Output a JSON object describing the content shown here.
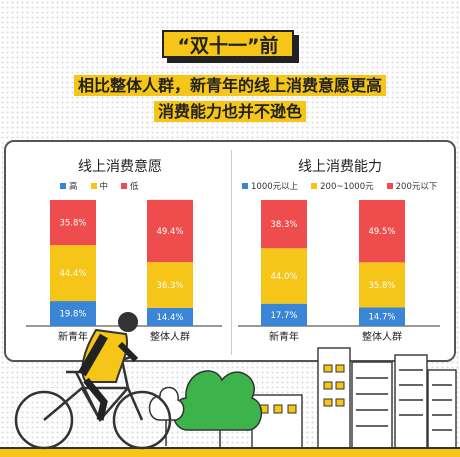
{
  "header": {
    "tag": "“双十一”前",
    "line1": "相比整体人群，新青年的线上消费意愿更高",
    "line2": "消费能力也并不逊色"
  },
  "colors": {
    "blue": "#3a86d6",
    "yellow": "#f5c518",
    "red": "#ef4d4d"
  },
  "chart_data": [
    {
      "type": "bar",
      "stacked": true,
      "title": "线上消费意愿",
      "categories": [
        "新青年",
        "整体人群"
      ],
      "series": [
        {
          "name": "高",
          "color": "#3a86d6",
          "values": [
            19.8,
            14.4
          ],
          "labels": [
            "19.8%",
            "14.4%"
          ]
        },
        {
          "name": "中",
          "color": "#f5c518",
          "values": [
            44.4,
            36.3
          ],
          "labels": [
            "44.4%",
            "36.3%"
          ]
        },
        {
          "name": "低",
          "color": "#ef4d4d",
          "values": [
            35.8,
            49.4
          ],
          "labels": [
            "35.8%",
            "49.4%"
          ]
        }
      ],
      "legend": "top"
    },
    {
      "type": "bar",
      "stacked": true,
      "title": "线上消费能力",
      "categories": [
        "新青年",
        "整体人群"
      ],
      "series": [
        {
          "name": "1000元以上",
          "color": "#3a86d6",
          "values": [
            17.7,
            14.7
          ],
          "labels": [
            "17.7%",
            "14.7%"
          ]
        },
        {
          "name": "200~1000元",
          "color": "#f5c518",
          "values": [
            44.0,
            35.8
          ],
          "labels": [
            "44.0%",
            "35.8%"
          ]
        },
        {
          "name": "200元以下",
          "color": "#ef4d4d",
          "values": [
            38.3,
            49.5
          ],
          "labels": [
            "38.3%",
            "49.5%"
          ]
        }
      ],
      "legend": "top"
    }
  ]
}
